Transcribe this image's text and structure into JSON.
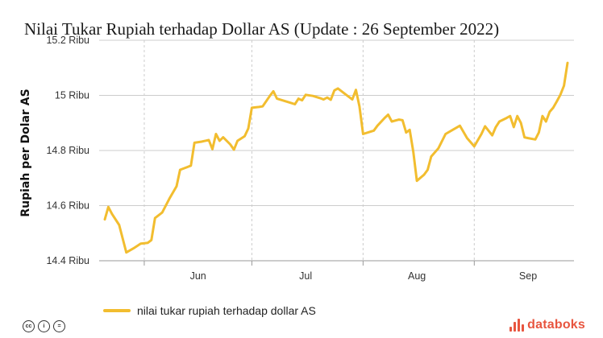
{
  "title": "Nilai Tukar Rupiah terhadap Dollar AS (Update : 26 September 2022)",
  "legend_label": "nilai tukar rupiah terhadap dollar AS",
  "brand": "databoks",
  "colors": {
    "line": "#f2bd2f",
    "grid": "#cccccc",
    "brand": "#e8553f"
  },
  "chart_data": {
    "type": "line",
    "ylabel": "Rupiah per Dolar AS",
    "xlabel": "",
    "ylim": [
      14400,
      15200
    ],
    "yticks": [
      {
        "value": 14400,
        "label": "14.4 Ribu"
      },
      {
        "value": 14600,
        "label": "14.6 Ribu"
      },
      {
        "value": 14800,
        "label": "14.8 Ribu"
      },
      {
        "value": 15000,
        "label": "15 Ribu"
      },
      {
        "value": 15200,
        "label": "15.2 Ribu"
      }
    ],
    "xlim": [
      "2022-05-20",
      "2022-09-26"
    ],
    "month_boundaries": [
      "2022-05-31",
      "2022-06-30",
      "2022-07-31",
      "2022-08-31"
    ],
    "xtick_labels": [
      {
        "date": "2022-06-15",
        "label": "Jun"
      },
      {
        "date": "2022-07-15",
        "label": "Jul"
      },
      {
        "date": "2022-08-15",
        "label": "Aug"
      },
      {
        "date": "2022-09-15",
        "label": "Sep"
      }
    ],
    "series": [
      {
        "name": "nilai tukar rupiah terhadap dollar AS",
        "points": [
          [
            "2022-05-20",
            14550
          ],
          [
            "2022-05-21",
            14595
          ],
          [
            "2022-05-22",
            14570
          ],
          [
            "2022-05-24",
            14530
          ],
          [
            "2022-05-26",
            14430
          ],
          [
            "2022-05-28",
            14445
          ],
          [
            "2022-05-30",
            14462
          ],
          [
            "2022-06-01",
            14465
          ],
          [
            "2022-06-02",
            14475
          ],
          [
            "2022-06-03",
            14555
          ],
          [
            "2022-06-05",
            14575
          ],
          [
            "2022-06-07",
            14625
          ],
          [
            "2022-06-09",
            14670
          ],
          [
            "2022-06-10",
            14730
          ],
          [
            "2022-06-12",
            14740
          ],
          [
            "2022-06-13",
            14745
          ],
          [
            "2022-06-14",
            14828
          ],
          [
            "2022-06-16",
            14832
          ],
          [
            "2022-06-18",
            14838
          ],
          [
            "2022-06-19",
            14805
          ],
          [
            "2022-06-20",
            14860
          ],
          [
            "2022-06-21",
            14835
          ],
          [
            "2022-06-22",
            14848
          ],
          [
            "2022-06-24",
            14822
          ],
          [
            "2022-06-25",
            14803
          ],
          [
            "2022-06-26",
            14835
          ],
          [
            "2022-06-28",
            14852
          ],
          [
            "2022-06-29",
            14880
          ],
          [
            "2022-06-30",
            14955
          ],
          [
            "2022-07-02",
            14958
          ],
          [
            "2022-07-03",
            14960
          ],
          [
            "2022-07-05",
            14998
          ],
          [
            "2022-07-06",
            15015
          ],
          [
            "2022-07-07",
            14988
          ],
          [
            "2022-07-09",
            14980
          ],
          [
            "2022-07-11",
            14972
          ],
          [
            "2022-07-12",
            14968
          ],
          [
            "2022-07-13",
            14988
          ],
          [
            "2022-07-14",
            14982
          ],
          [
            "2022-07-15",
            15002
          ],
          [
            "2022-07-17",
            14998
          ],
          [
            "2022-07-19",
            14990
          ],
          [
            "2022-07-20",
            14985
          ],
          [
            "2022-07-21",
            14992
          ],
          [
            "2022-07-22",
            14984
          ],
          [
            "2022-07-23",
            15018
          ],
          [
            "2022-07-24",
            15025
          ],
          [
            "2022-07-26",
            15005
          ],
          [
            "2022-07-28",
            14985
          ],
          [
            "2022-07-29",
            15020
          ],
          [
            "2022-07-30",
            14960
          ],
          [
            "2022-07-31",
            14860
          ],
          [
            "2022-08-02",
            14868
          ],
          [
            "2022-08-03",
            14872
          ],
          [
            "2022-08-04",
            14890
          ],
          [
            "2022-08-06",
            14918
          ],
          [
            "2022-08-07",
            14930
          ],
          [
            "2022-08-08",
            14905
          ],
          [
            "2022-08-10",
            14912
          ],
          [
            "2022-08-11",
            14910
          ],
          [
            "2022-08-12",
            14865
          ],
          [
            "2022-08-13",
            14875
          ],
          [
            "2022-08-14",
            14795
          ],
          [
            "2022-08-15",
            14690
          ],
          [
            "2022-08-17",
            14712
          ],
          [
            "2022-08-18",
            14730
          ],
          [
            "2022-08-19",
            14778
          ],
          [
            "2022-08-21",
            14808
          ],
          [
            "2022-08-23",
            14860
          ],
          [
            "2022-08-25",
            14875
          ],
          [
            "2022-08-27",
            14890
          ],
          [
            "2022-08-29",
            14845
          ],
          [
            "2022-08-31",
            14815
          ],
          [
            "2022-09-02",
            14860
          ],
          [
            "2022-09-03",
            14888
          ],
          [
            "2022-09-05",
            14855
          ],
          [
            "2022-09-06",
            14885
          ],
          [
            "2022-09-07",
            14905
          ],
          [
            "2022-09-09",
            14918
          ],
          [
            "2022-09-10",
            14925
          ],
          [
            "2022-09-11",
            14885
          ],
          [
            "2022-09-12",
            14925
          ],
          [
            "2022-09-13",
            14900
          ],
          [
            "2022-09-14",
            14848
          ],
          [
            "2022-09-15",
            14845
          ],
          [
            "2022-09-17",
            14840
          ],
          [
            "2022-09-18",
            14865
          ],
          [
            "2022-09-19",
            14925
          ],
          [
            "2022-09-20",
            14905
          ],
          [
            "2022-09-21",
            14940
          ],
          [
            "2022-09-22",
            14955
          ],
          [
            "2022-09-23",
            14978
          ],
          [
            "2022-09-24",
            15002
          ],
          [
            "2022-09-25",
            15035
          ],
          [
            "2022-09-26",
            15118
          ]
        ]
      }
    ],
    "grid": true,
    "legend_position": "bottom-left"
  }
}
